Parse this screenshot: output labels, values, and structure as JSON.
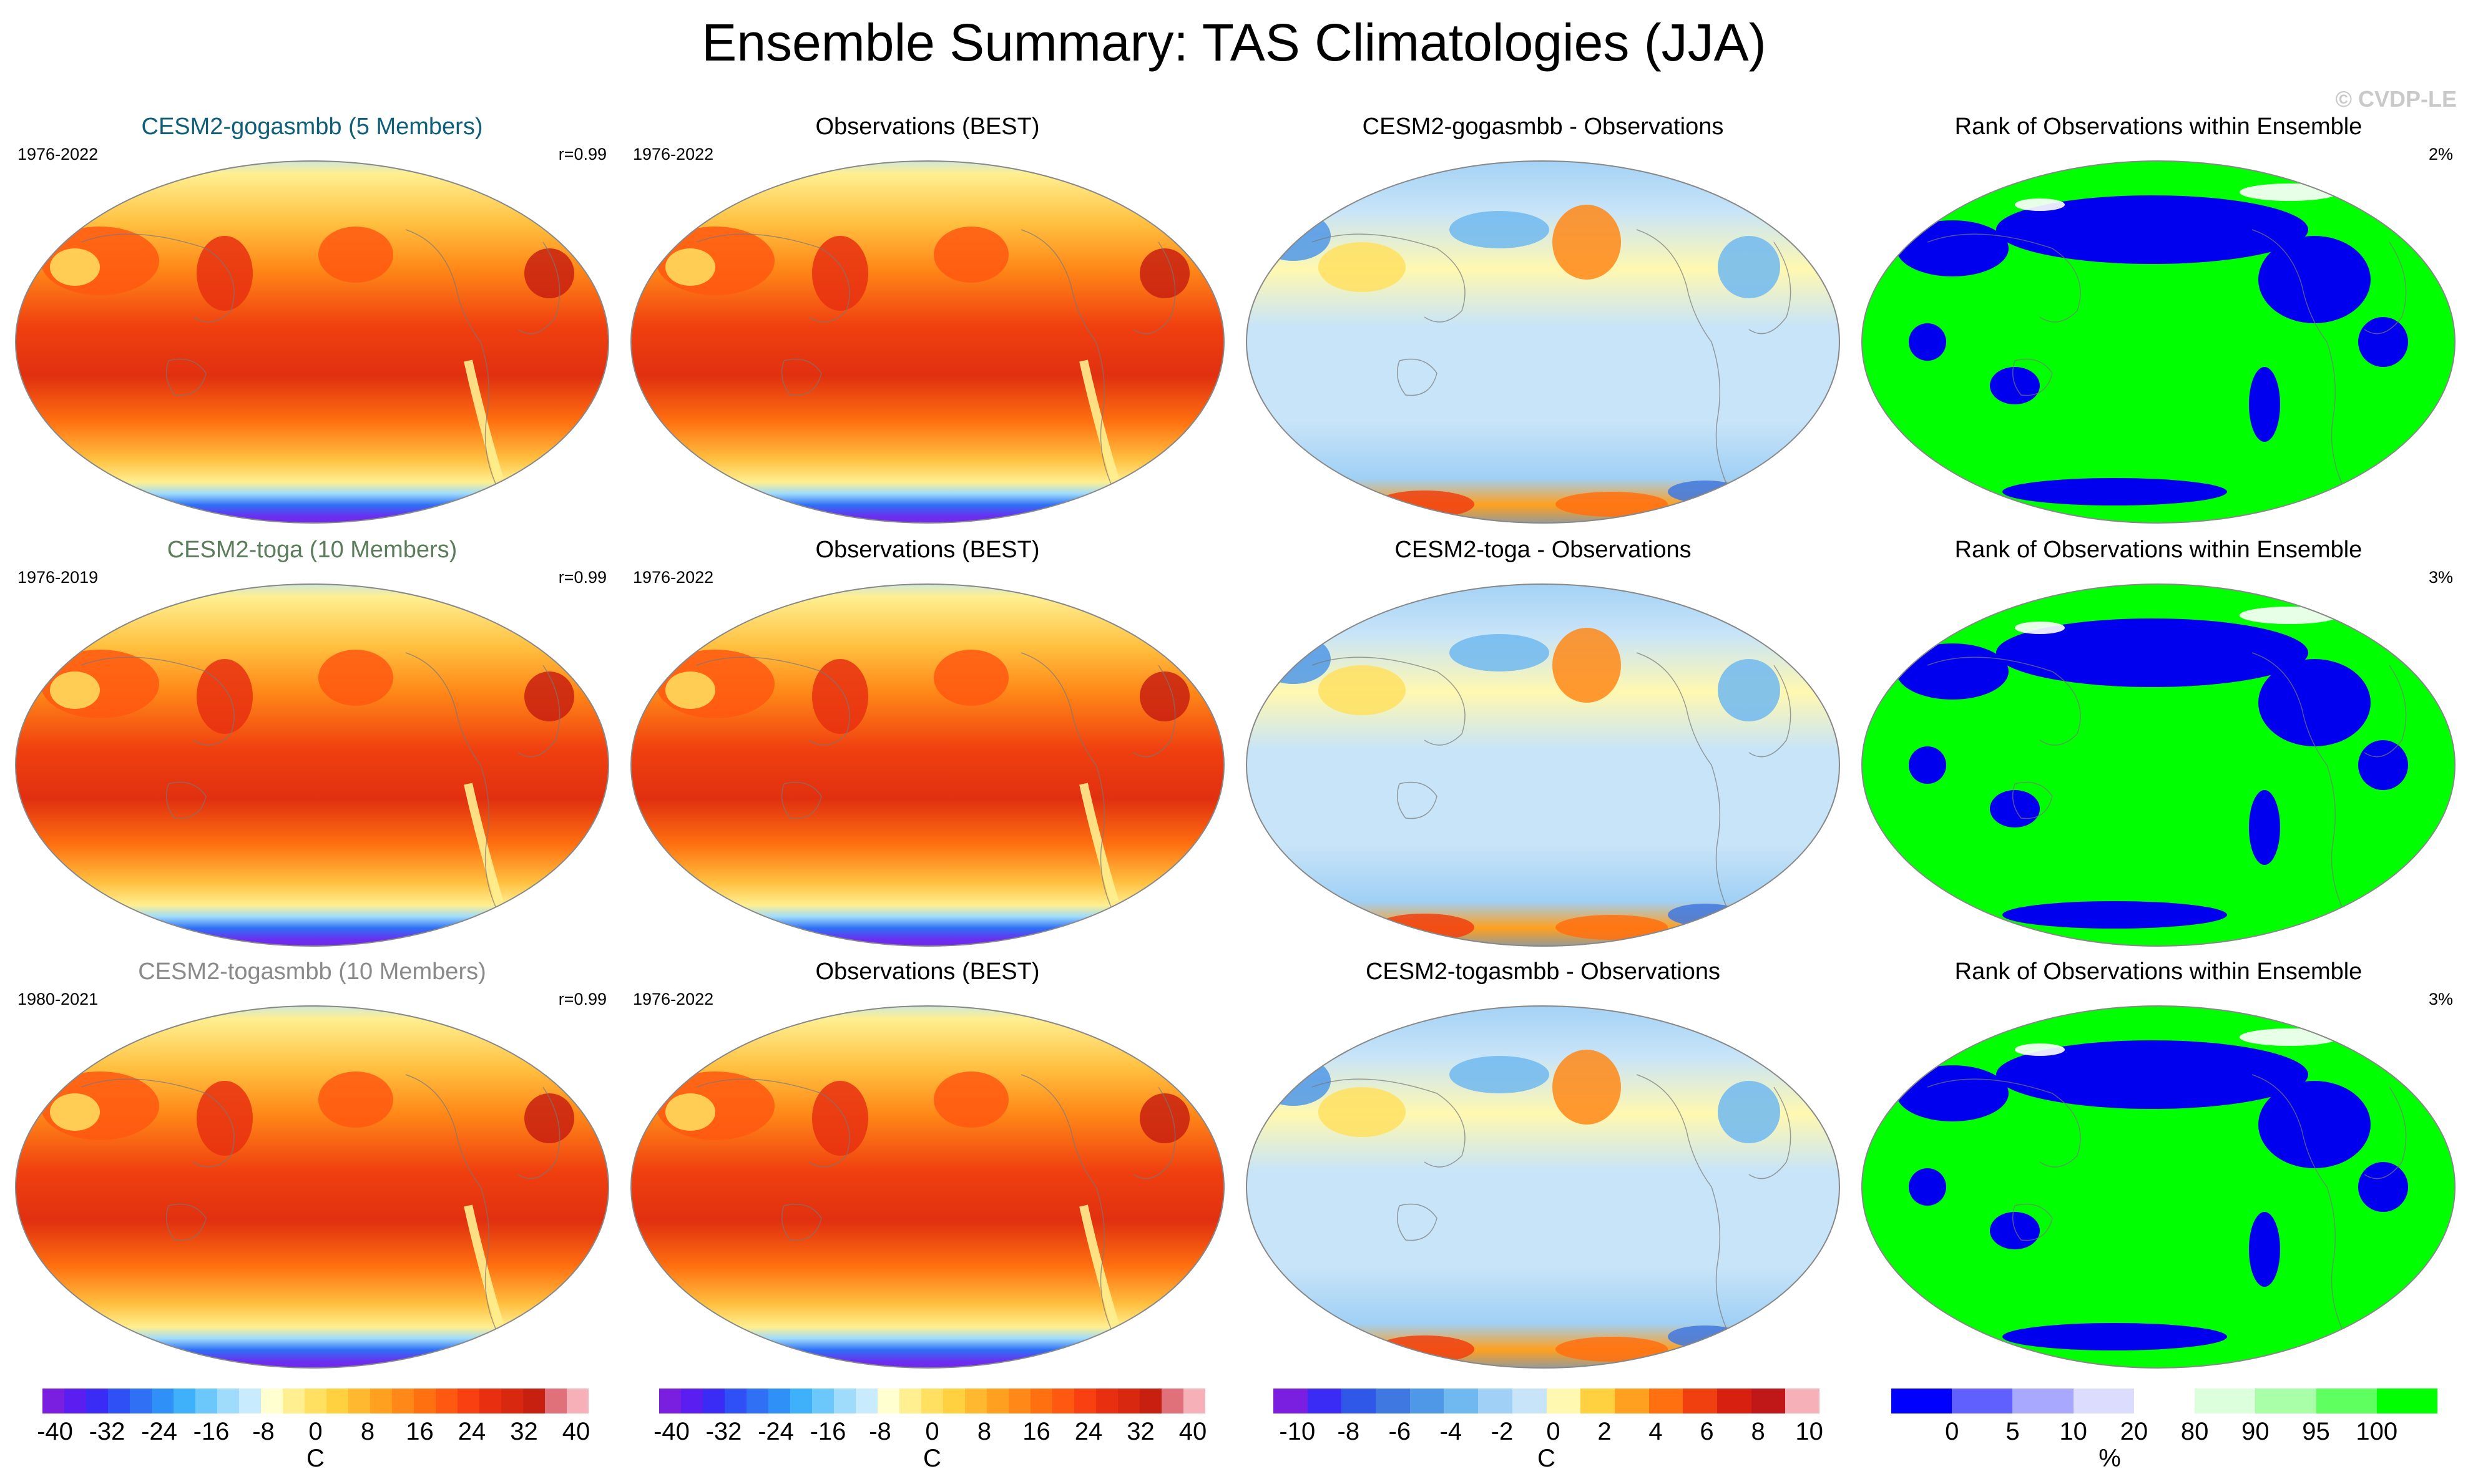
{
  "title": "Ensemble Summary: TAS Climatologies (JJA)",
  "copyright": "© CVDP-LE",
  "rows": [
    {
      "model_title": "CESM2-gogasmbb (5 Members)",
      "model_title_color": "#0f5f7a",
      "model_years": "1976-2022",
      "model_r": "r=0.99",
      "obs_title": "Observations (BEST)",
      "obs_years": "1976-2022",
      "diff_title": "CESM2-gogasmbb - Observations",
      "rank_title": "Rank of Observations within Ensemble",
      "rank_pct": "2%"
    },
    {
      "model_title": "CESM2-toga (10 Members)",
      "model_title_color": "#5b7d5b",
      "model_years": "1976-2019",
      "model_r": "r=0.99",
      "obs_title": "Observations (BEST)",
      "obs_years": "1976-2022",
      "diff_title": "CESM2-toga - Observations",
      "rank_title": "Rank of Observations within Ensemble",
      "rank_pct": "3%"
    },
    {
      "model_title": "CESM2-togasmbb (10 Members)",
      "model_title_color": "#8a8a8a",
      "model_years": "1980-2021",
      "model_r": "r=0.99",
      "obs_title": "Observations (BEST)",
      "obs_years": "1976-2022",
      "diff_title": "CESM2-togasmbb - Observations",
      "rank_title": "Rank of Observations within Ensemble",
      "rank_pct": "3%"
    }
  ],
  "colorbars": [
    {
      "name": "tas",
      "unit": "C",
      "ticks": [
        "-40",
        "-32",
        "-24",
        "-16",
        "-8",
        "0",
        "8",
        "16",
        "24",
        "32",
        "40"
      ],
      "colors": [
        "#7a1fe0",
        "#5a1ff0",
        "#3a2cf5",
        "#2f50f5",
        "#2f70f5",
        "#2f90f8",
        "#3fb0fa",
        "#6cc8fb",
        "#9fdcfc",
        "#c8ecfd",
        "#ffffd0",
        "#ffef90",
        "#ffe060",
        "#ffd040",
        "#ffb830",
        "#ffa020",
        "#ff8818",
        "#ff7010",
        "#ff5810",
        "#f84010",
        "#e83010",
        "#d82810",
        "#c82010",
        "#e0707a",
        "#f5b0b8"
      ]
    },
    {
      "name": "tas_obs",
      "unit": "C",
      "ticks": [
        "-40",
        "-32",
        "-24",
        "-16",
        "-8",
        "0",
        "8",
        "16",
        "24",
        "32",
        "40"
      ],
      "colors": [
        "#7a1fe0",
        "#5a1ff0",
        "#3a2cf5",
        "#2f50f5",
        "#2f70f5",
        "#2f90f8",
        "#3fb0fa",
        "#6cc8fb",
        "#9fdcfc",
        "#c8ecfd",
        "#ffffd0",
        "#ffef90",
        "#ffe060",
        "#ffd040",
        "#ffb830",
        "#ffa020",
        "#ff8818",
        "#ff7010",
        "#ff5810",
        "#f84010",
        "#e83010",
        "#d82810",
        "#c82010",
        "#e0707a",
        "#f5b0b8"
      ]
    },
    {
      "name": "diff",
      "unit": "C",
      "ticks": [
        "-10",
        "-8",
        "-6",
        "-4",
        "-2",
        "0",
        "2",
        "4",
        "6",
        "8",
        "10"
      ],
      "colors": [
        "#7a1fe0",
        "#3a2cf5",
        "#2f58e8",
        "#3f78e0",
        "#4f98e8",
        "#70b8f0",
        "#a0d0f5",
        "#c8e4f8",
        "#fff8b0",
        "#ffd040",
        "#ffa020",
        "#ff7010",
        "#f04010",
        "#d82010",
        "#c01818",
        "#f5b0b8"
      ]
    },
    {
      "name": "rank",
      "unit": "%",
      "ticks": [
        "0",
        "5",
        "10",
        "20",
        "80",
        "90",
        "95",
        "100"
      ],
      "colors": [
        "#0000ff",
        "#6060ff",
        "#a8a8ff",
        "#dcdcff",
        "#ffffff",
        "#dcffdc",
        "#a8ffa8",
        "#60ff60",
        "#00ff00"
      ]
    }
  ]
}
